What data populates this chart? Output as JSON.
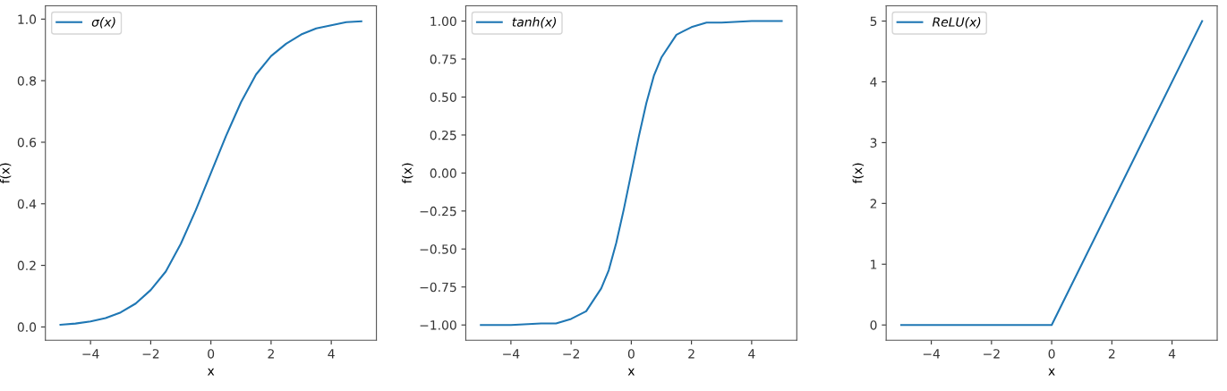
{
  "chart_data": [
    {
      "type": "line",
      "xlabel": "x",
      "ylabel": "f(x)",
      "legend": "top left",
      "grid": false,
      "xlim": [
        -5.5,
        5.5
      ],
      "ylim": [
        -0.043,
        1.043
      ],
      "xticks": [
        -4,
        -2,
        0,
        2,
        4
      ],
      "yticks": [
        {
          "value": 0,
          "label": "0.0"
        },
        0.2,
        0.4,
        0.6,
        0.8,
        {
          "value": 1,
          "label": "1.0"
        }
      ],
      "x": [
        -5,
        -4.5,
        -4,
        -3.5,
        -3,
        -2.5,
        -2,
        -1.5,
        -1,
        -0.5,
        0,
        0.5,
        1,
        1.5,
        2,
        2.5,
        3,
        3.5,
        4,
        4.5,
        5
      ],
      "series": [
        {
          "name": "σ(x)",
          "color": "#1f77b4",
          "values": [
            0.007,
            0.011,
            0.018,
            0.029,
            0.047,
            0.076,
            0.12,
            0.18,
            0.27,
            0.38,
            0.5,
            0.62,
            0.73,
            0.82,
            0.88,
            0.92,
            0.95,
            0.97,
            0.98,
            0.99,
            0.993
          ]
        }
      ]
    },
    {
      "type": "line",
      "xlabel": "x",
      "ylabel": "f(x)",
      "legend": "top left",
      "grid": false,
      "xlim": [
        -5.5,
        5.5
      ],
      "ylim": [
        -1.1,
        1.1
      ],
      "xticks": [
        -4,
        -2,
        0,
        2,
        4
      ],
      "yticks": [
        {
          "value": -1,
          "label": "−1.00"
        },
        {
          "value": -0.75,
          "label": "−0.75"
        },
        {
          "value": -0.5,
          "label": "−0.50"
        },
        {
          "value": -0.25,
          "label": "−0.25"
        },
        {
          "value": 0,
          "label": "0.00"
        },
        {
          "value": 0.25,
          "label": "0.25"
        },
        {
          "value": 0.5,
          "label": "0.50"
        },
        {
          "value": 0.75,
          "label": "0.75"
        },
        {
          "value": 1,
          "label": "1.00"
        }
      ],
      "x": [
        -5,
        -4,
        -3,
        -2.5,
        -2,
        -1.5,
        -1,
        -0.75,
        -0.5,
        -0.25,
        0,
        0.25,
        0.5,
        0.75,
        1,
        1.5,
        2,
        2.5,
        3,
        4,
        5
      ],
      "series": [
        {
          "name": "tanh(x)",
          "color": "#1f77b4",
          "values": [
            -1,
            -1,
            -0.99,
            -0.99,
            -0.96,
            -0.91,
            -0.76,
            -0.64,
            -0.46,
            -0.24,
            0,
            0.24,
            0.46,
            0.64,
            0.76,
            0.91,
            0.96,
            0.99,
            0.99,
            1,
            1
          ]
        }
      ]
    },
    {
      "type": "line",
      "xlabel": "x",
      "ylabel": "f(x)",
      "legend": "top left",
      "grid": false,
      "xlim": [
        -5.5,
        5.5
      ],
      "ylim": [
        -0.25,
        5.25
      ],
      "xticks": [
        -4,
        -2,
        0,
        2,
        4
      ],
      "yticks": [
        0,
        1,
        2,
        3,
        4,
        5
      ],
      "x": [
        -5,
        0,
        5
      ],
      "series": [
        {
          "name": "ReLU(x)",
          "color": "#1f77b4",
          "values": [
            0,
            0,
            5
          ]
        }
      ]
    }
  ]
}
